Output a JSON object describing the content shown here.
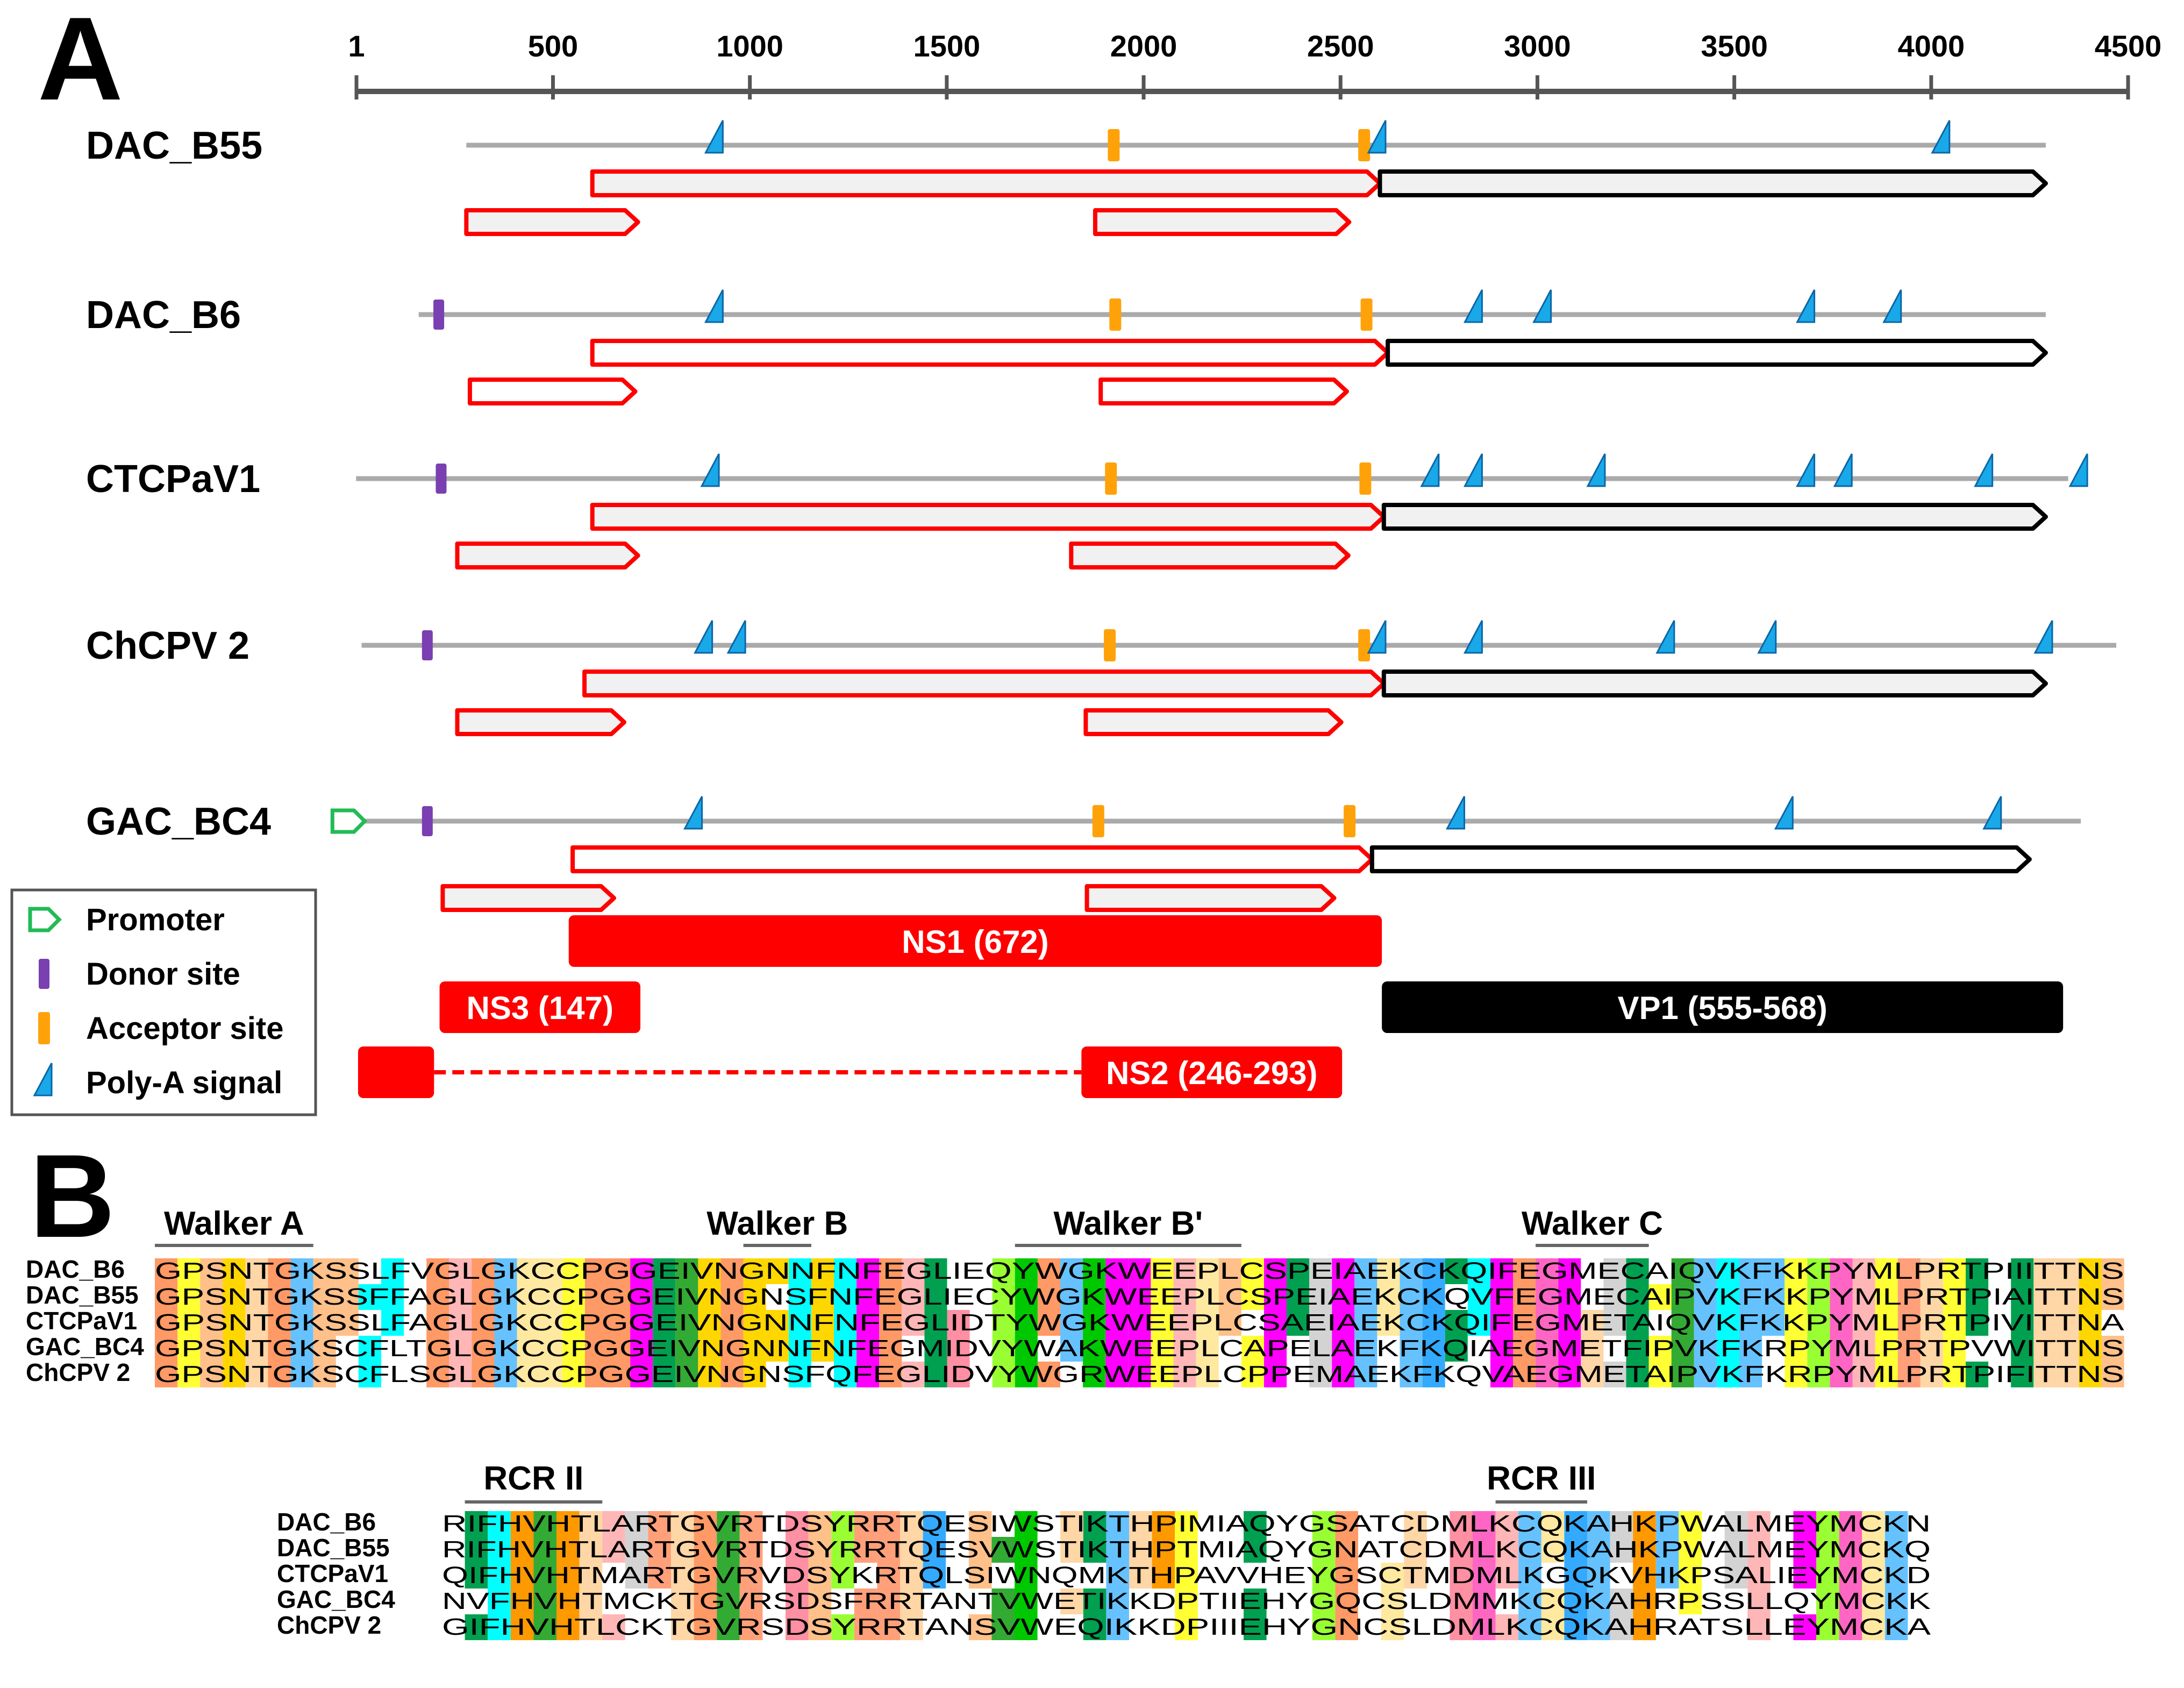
{
  "panel_a": {
    "label": "A",
    "scale_ticks": [
      "1",
      "500",
      "1000",
      "1500",
      "2000",
      "2500",
      "3000",
      "3500",
      "4000",
      "4500"
    ],
    "genomes": [
      {
        "name": "DAC_B55",
        "start": 280,
        "end": 4291,
        "donor": [],
        "acceptor": [
          1924,
          2560
        ],
        "polya": [
          915,
          2598,
          4030
        ],
        "orfs": [
          {
            "s": 600,
            "e": 2600,
            "fill": "light",
            "c": "red"
          },
          {
            "s": 2600,
            "e": 4291,
            "fill": "light",
            "c": "black"
          },
          {
            "s": 280,
            "e": 716,
            "fill": "light",
            "c": "red"
          },
          {
            "s": 1877,
            "e": 2522,
            "fill": "light",
            "c": "red"
          }
        ]
      },
      {
        "name": "DAC_B6",
        "start": 159,
        "end": 4291,
        "donor": [
          210
        ],
        "acceptor": [
          1928,
          2566
        ],
        "polya": [
          915,
          2843,
          3018,
          3687,
          3907
        ],
        "orfs": [
          {
            "s": 600,
            "e": 2620,
            "fill": "white",
            "c": "red"
          },
          {
            "s": 2620,
            "e": 4291,
            "fill": "white",
            "c": "black"
          },
          {
            "s": 289,
            "e": 709,
            "fill": "white",
            "c": "red"
          },
          {
            "s": 1891,
            "e": 2516,
            "fill": "white",
            "c": "red"
          }
        ]
      },
      {
        "name": "CTCPaV1",
        "start": 0,
        "end": 4348,
        "donor": [
          216
        ],
        "acceptor": [
          1917,
          2563
        ],
        "polya": [
          905,
          2733,
          2843,
          3155,
          3687,
          3782,
          4139,
          4380
        ],
        "orfs": [
          {
            "s": 600,
            "e": 2610,
            "fill": "light",
            "c": "red"
          },
          {
            "s": 2610,
            "e": 4291,
            "fill": "light",
            "c": "black"
          },
          {
            "s": 257,
            "e": 716,
            "fill": "light",
            "c": "red"
          },
          {
            "s": 1816,
            "e": 2520,
            "fill": "light",
            "c": "red"
          }
        ]
      },
      {
        "name": "ChCPV 2",
        "start": 14,
        "end": 4470,
        "donor": [
          181
        ],
        "acceptor": [
          1914,
          2560
        ],
        "polya": [
          888,
          972,
          2598,
          2843,
          3331,
          3589,
          4291
        ],
        "orfs": [
          {
            "s": 580,
            "e": 2610,
            "fill": "light",
            "c": "red"
          },
          {
            "s": 2610,
            "e": 4291,
            "fill": "light",
            "c": "black"
          },
          {
            "s": 257,
            "e": 681,
            "fill": "light",
            "c": "red"
          },
          {
            "s": 1853,
            "e": 2502,
            "fill": "light",
            "c": "red"
          }
        ]
      },
      {
        "name": "GAC_BC4",
        "start": -60,
        "end": 4380,
        "promoter": [
          -30
        ],
        "donor": [
          181
        ],
        "acceptor": [
          1885,
          2523
        ],
        "polya": [
          862,
          2798,
          3632,
          4161
        ],
        "orfs": [
          {
            "s": 550,
            "e": 2580,
            "fill": "white",
            "c": "red"
          },
          {
            "s": 2580,
            "e": 4250,
            "fill": "white",
            "c": "black"
          },
          {
            "s": 220,
            "e": 655,
            "fill": "light",
            "c": "red"
          },
          {
            "s": 1856,
            "e": 2484,
            "fill": "light",
            "c": "red"
          }
        ]
      }
    ],
    "legend": [
      {
        "symbol": "promoter",
        "label": "Promoter"
      },
      {
        "symbol": "donor",
        "label": "Donor site"
      },
      {
        "symbol": "acceptor",
        "label": "Acceptor site"
      },
      {
        "symbol": "polya",
        "label": "Poly-A signal"
      }
    ],
    "proteins": [
      {
        "label": "NS1 (672)",
        "s": 540,
        "e": 2605,
        "row": 0,
        "color": "#ff0000"
      },
      {
        "label": "NS3 (147)",
        "s": 212,
        "e": 722,
        "row": 1,
        "color": "#ff0000"
      },
      {
        "label": "VP1 (555-568)",
        "s": 2605,
        "e": 4335,
        "row": 1,
        "color": "#000000"
      },
      {
        "label": "NS2 (246-293)",
        "s": 1842,
        "e": 2504,
        "row": 2,
        "color": "#ff0000",
        "exon1": [
          5,
          198
        ]
      }
    ]
  },
  "panel_b": {
    "label": "B",
    "block1": {
      "motifs": [
        {
          "label": "Walker A",
          "from": 0,
          "to": 6
        },
        {
          "label": "Walker B",
          "from": 26,
          "to": 28
        },
        {
          "label": "Walker B'",
          "from": 38,
          "to": 47
        },
        {
          "label": "Walker C",
          "from": 61,
          "to": 65
        }
      ],
      "rows": [
        {
          "name": "DAC_B6",
          "seq": "GPSNTGKSSLFVGLGKCCPGGEIVNGNNFNFEGLIEQYWGKWEEPLCSPEIAEKCKQIFEGMECAIQVKFKKPYMLPRTPIIITTNS"
        },
        {
          "name": "DAC_B55",
          "seq": "GPSNTGKSSFFAGLGKCCPGGEIVNGNSFNFEGLIECYWGKWEEPLCSPEIAEKCKQVFEGMECAIPVKFKKPYMLPRTPIAITTNS"
        },
        {
          "name": "CTCPaV1",
          "seq": "GPSNTGKSSLFAGLGKCCPGGEIVNGNNFNFEGLIDTYWGKWEEPLCSAEIAEKCKQIFEGMETAIQVKFKKPYMLPRTPIVITTNA"
        },
        {
          "name": "GAC_BC4",
          "seq": "GPSNTGKSCFLTGLGKCCPGGEIVNGNNFNFEGMIDVYWAKWEEPLCAPELAEKFKQIAEGMETFIPVKFKRPYMLPRTPVWITTNS"
        },
        {
          "name": "ChCPV 2",
          "seq": "GPSNTGKSCFLSGLGKCCPGGEIVNGNSFQFEGLIDVYWGRWEEPLCPPEMAEKFKQVAEGMETAIPVKFKRPYMLPRTPIFITTNS"
        }
      ]
    },
    "block2": {
      "motifs": [
        {
          "label": "RCR II",
          "from": 1,
          "to": 6
        },
        {
          "label": "RCR III",
          "from": 46,
          "to": 49
        }
      ],
      "rows": [
        {
          "name": "DAC_B6",
          "seq": "RIFHVHTLARTGVRTDSYRRTQESIWSTIKTHPIMIAQYGSATCDMLKCQKAHKPWALMEYMCKN"
        },
        {
          "name": "DAC_B55",
          "seq": "RIFHVHTLARTGVRTDSYRRTQESVWSTIKTHPTMIAQYGNATCDMLKCQKAHKPWALMEYMCKQ"
        },
        {
          "name": "CTCPaV1",
          "seq": "QIFHVHTMARTGVRVDSYKRTQLSIWNQMKTHPAVVHEYGSCTMDMLKGQKVHKPSALIEYMCKD"
        },
        {
          "name": "GAC_BC4",
          "seq": "NVFHVHTMCKTGVRSDSFRRTANTVWETIKKDPTIIEHYGQCSLDMMKCQKAHRPSSLLQYMCKK"
        },
        {
          "name": "ChCPV 2",
          "seq": "GIFHVHTLCKTGVRSDSYRRTANSVWEQIKKDPIIIEHYGNCSLDMLKCQKAHRATSLLEYMCKA"
        }
      ]
    },
    "colors": {
      "A": "#d3d3d3",
      "C": "#ffe9a0",
      "D": "#ff8fa3",
      "E": "#ff00ff",
      "F": "#00ffff",
      "G": "#ff9966",
      "H": "#ff9900",
      "I": "#00a050",
      "K": "#66c2ff",
      "L": "#ffb6b6",
      "M": "#ff66c4",
      "N": "#ffd700",
      "P": "#ffff33",
      "Q": "#33aaff",
      "R": "#ffa07a",
      "S": "#ffc08a",
      "T": "#ffd6a6",
      "V": "#33aa33",
      "W": "#00c800",
      "Y": "#99ff33"
    }
  }
}
